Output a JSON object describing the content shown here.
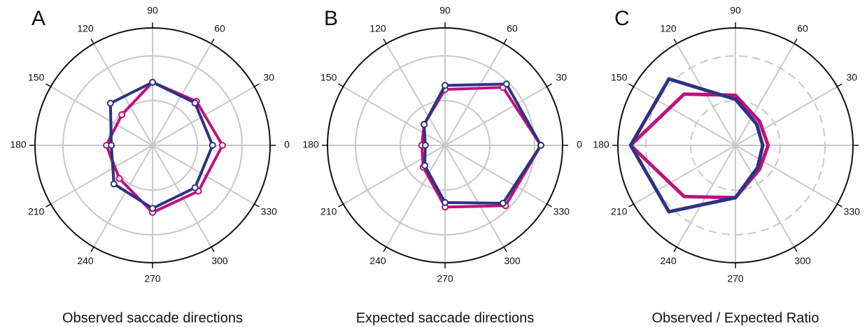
{
  "chart_data": [
    {
      "type": "polar",
      "panel": "A",
      "title": "Observed saccade directions",
      "theta": [
        0,
        45,
        90,
        135,
        180,
        225,
        270,
        315
      ],
      "thetaticks": [
        0,
        30,
        60,
        90,
        120,
        150,
        180,
        210,
        240,
        270,
        300,
        330
      ],
      "rlim": [
        0,
        2.625
      ],
      "rticks": [
        1,
        2
      ],
      "grid_style": "solid",
      "markers": true,
      "series": [
        {
          "color": "#c0117a",
          "values": [
            1.56,
            1.39,
            1.41,
            0.97,
            1.03,
            1.05,
            1.5,
            1.45
          ]
        },
        {
          "color": "#2e3282",
          "values": [
            1.34,
            1.34,
            1.41,
            1.33,
            0.92,
            1.22,
            1.41,
            1.34
          ]
        }
      ]
    },
    {
      "type": "polar",
      "panel": "B",
      "title": "Expected saccade directions",
      "theta": [
        0,
        45,
        90,
        135,
        180,
        225,
        270,
        315
      ],
      "thetaticks": [
        0,
        30,
        60,
        90,
        120,
        150,
        180,
        210,
        240,
        270,
        300,
        330
      ],
      "rlim": [
        0,
        2.625
      ],
      "rticks": [
        1,
        2
      ],
      "grid_style": "solid",
      "markers": true,
      "series": [
        {
          "color": "#c0117a",
          "values": [
            2.14,
            1.83,
            1.25,
            0.66,
            0.52,
            0.69,
            1.38,
            1.91
          ]
        },
        {
          "color": "#2e3282",
          "values": [
            2.14,
            1.94,
            1.34,
            0.66,
            0.44,
            0.64,
            1.28,
            1.83
          ]
        }
      ]
    },
    {
      "type": "polar",
      "panel": "C",
      "title": "Observed / Expected Ratio",
      "theta": [
        0,
        45,
        90,
        135,
        180,
        225,
        270,
        315
      ],
      "thetaticks": [
        0,
        30,
        60,
        90,
        120,
        150,
        180,
        210,
        240,
        270,
        300,
        330
      ],
      "rlim": [
        0,
        2.625
      ],
      "rticks": [
        1,
        2
      ],
      "grid_style": "dashed",
      "markers": false,
      "series": [
        {
          "color": "#c0117a",
          "values": [
            0.73,
            0.76,
            1.12,
            1.62,
            2.34,
            1.62,
            1.17,
            0.76
          ]
        },
        {
          "color": "#2e3282",
          "values": [
            0.61,
            0.67,
            1.03,
            2.1,
            2.34,
            2.1,
            1.17,
            0.7
          ]
        }
      ]
    }
  ]
}
